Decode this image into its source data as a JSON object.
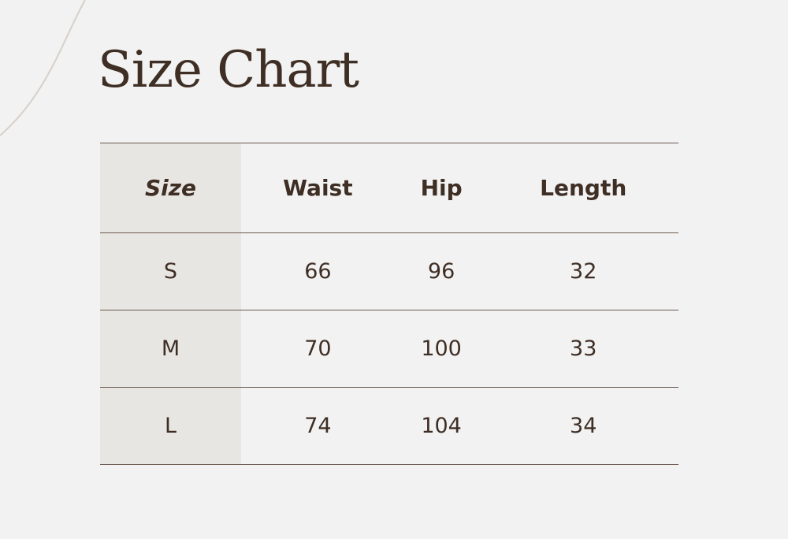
{
  "title": "Size Chart",
  "headers": [
    "Size",
    "Waist",
    "Hip",
    "Length"
  ],
  "rows": [
    [
      "S",
      "66",
      "96",
      "32"
    ],
    [
      "M",
      "70",
      "100",
      "33"
    ],
    [
      "L",
      "74",
      "104",
      "34"
    ]
  ]
}
